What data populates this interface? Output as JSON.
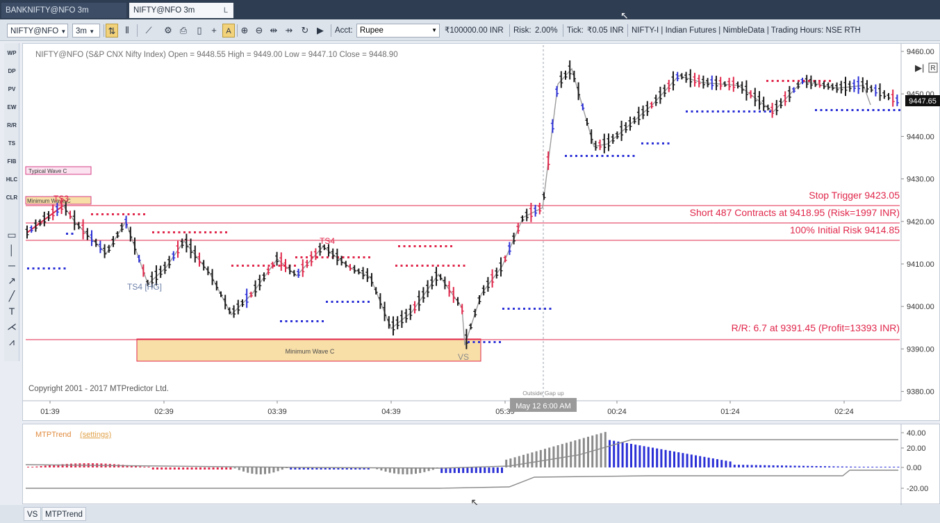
{
  "tabs": [
    {
      "label": "BANKNIFTY@NFO 3m",
      "close": ""
    },
    {
      "label": "NIFTY@NFO 3m",
      "close": "L"
    }
  ],
  "toolbar": {
    "symbol": "NIFTY@NFO",
    "interval": "3m",
    "acct_label": "Acct:",
    "acct_value": "Rupee",
    "balance": "₹100000.00 INR",
    "risk_label": "Risk:",
    "risk_value": "2.00%",
    "tick_label": "Tick:",
    "tick_value": "₹0.05 INR",
    "info": "NIFTY-I | Indian Futures | NimbleData | Trading Hours: NSE RTH",
    "icons": [
      "bars-icon",
      "candles-icon",
      "line-chart-icon",
      "gear-icon",
      "print-icon",
      "page-icon",
      "crosshair-icon",
      "text-a-icon",
      "zoom-in-icon",
      "zoom-out-icon",
      "scroll-icon",
      "refresh-icon",
      "play-icon"
    ]
  },
  "left_tools": {
    "labels": [
      "WP",
      "DP",
      "PV",
      "EW",
      "R/R",
      "TS",
      "FIB",
      "HLC",
      "CLR"
    ],
    "icons": [
      "rectangle-icon",
      "vertical-line-icon",
      "horizontal-line-icon",
      "arrow-icon",
      "trendline-icon",
      "text-tool-icon",
      "fork-icon",
      "zigzag-icon"
    ]
  },
  "main_chart": {
    "header": "NIFTY@NFO (S&P CNX Nifty Index) Open = 9448.55 High = 9449.00 Low = 9447.10 Close = 9448.90",
    "copyright": "Copyright 2001 - 2017 MTPredictor Ltd.",
    "price_axis": [
      "9460.00",
      "9450.00",
      "9440.00",
      "9430.00",
      "9420.00",
      "9410.00",
      "9400.00",
      "9390.00",
      "9380.00"
    ],
    "last_price": "9447.65",
    "time_axis": [
      "01:39",
      "02:39",
      "03:39",
      "04:39",
      "05:39",
      "00:24",
      "01:24",
      "02:24"
    ],
    "cursor_time": "May 12 6:00 AM",
    "gap_label": "Outside Gap up",
    "trade_levels": {
      "stop": "Stop Trigger 9423.05",
      "entry": "Short 487 Contracts at 9418.95 (Risk=1997 INR)",
      "initial_risk": "100% Initial Risk 9414.85",
      "target": "R/R: 6.7 at 9391.45 (Profit=13393 INR)"
    },
    "boxes": {
      "typical_wave": "Typical Wave C",
      "minimum_wave_small": "Minimum Wave C",
      "minimum_wave": "Minimum Wave C"
    },
    "labels": {
      "ts3": "TS3",
      "ts4": "TS4",
      "ts4_hg": "TS4 [HG]",
      "vs": "VS"
    },
    "nav_icons": [
      "step-forward-icon",
      "reset-r-icon"
    ],
    "colors": {
      "up": "#1a1a1a",
      "down": "#e0264a",
      "blue": "#2a2fd6",
      "zigzag": "#9a9a9a",
      "level": "#e0264a",
      "box": "#f8dfa8"
    }
  },
  "indicator": {
    "title": "MTPTrend",
    "settings": "(settings)",
    "axis": [
      "40.00",
      "20.00",
      "0.00",
      "-20.00"
    ]
  },
  "bottom_tabs": [
    "VS",
    "MTPTrend"
  ]
}
